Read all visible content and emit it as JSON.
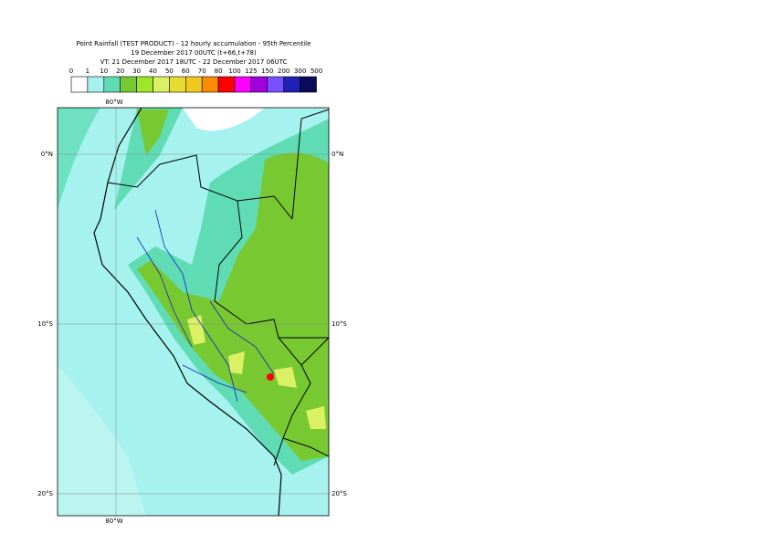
{
  "header": {
    "title": "Point Rainfall (TEST PRODUCT) - 12 hourly accumulation - 95th Percentile",
    "subtitle": "19 December 2017 00UTC (t+66,t+78)",
    "valid_time": "VT: 21 December 2017 18UTC - 22 December 2017 06UTC"
  },
  "legend": {
    "labels": [
      "0",
      "1",
      "10",
      "20",
      "30",
      "40",
      "50",
      "60",
      "70",
      "80",
      "100",
      "125",
      "150",
      "200",
      "300",
      "500"
    ],
    "colors": [
      "#ffffff",
      "#a6f2ee",
      "#5fdcb4",
      "#78c832",
      "#a0e628",
      "#dcf064",
      "#e6dc32",
      "#f0c81e",
      "#fa8c00",
      "#ff0000",
      "#ff00ff",
      "#a000dc",
      "#7850ff",
      "#2020b4",
      "#0a0a5a"
    ]
  },
  "map": {
    "lon_labels": [
      "80°W",
      "80°W"
    ],
    "lat_labels": [
      "0°N",
      "10°S",
      "20°S"
    ]
  }
}
